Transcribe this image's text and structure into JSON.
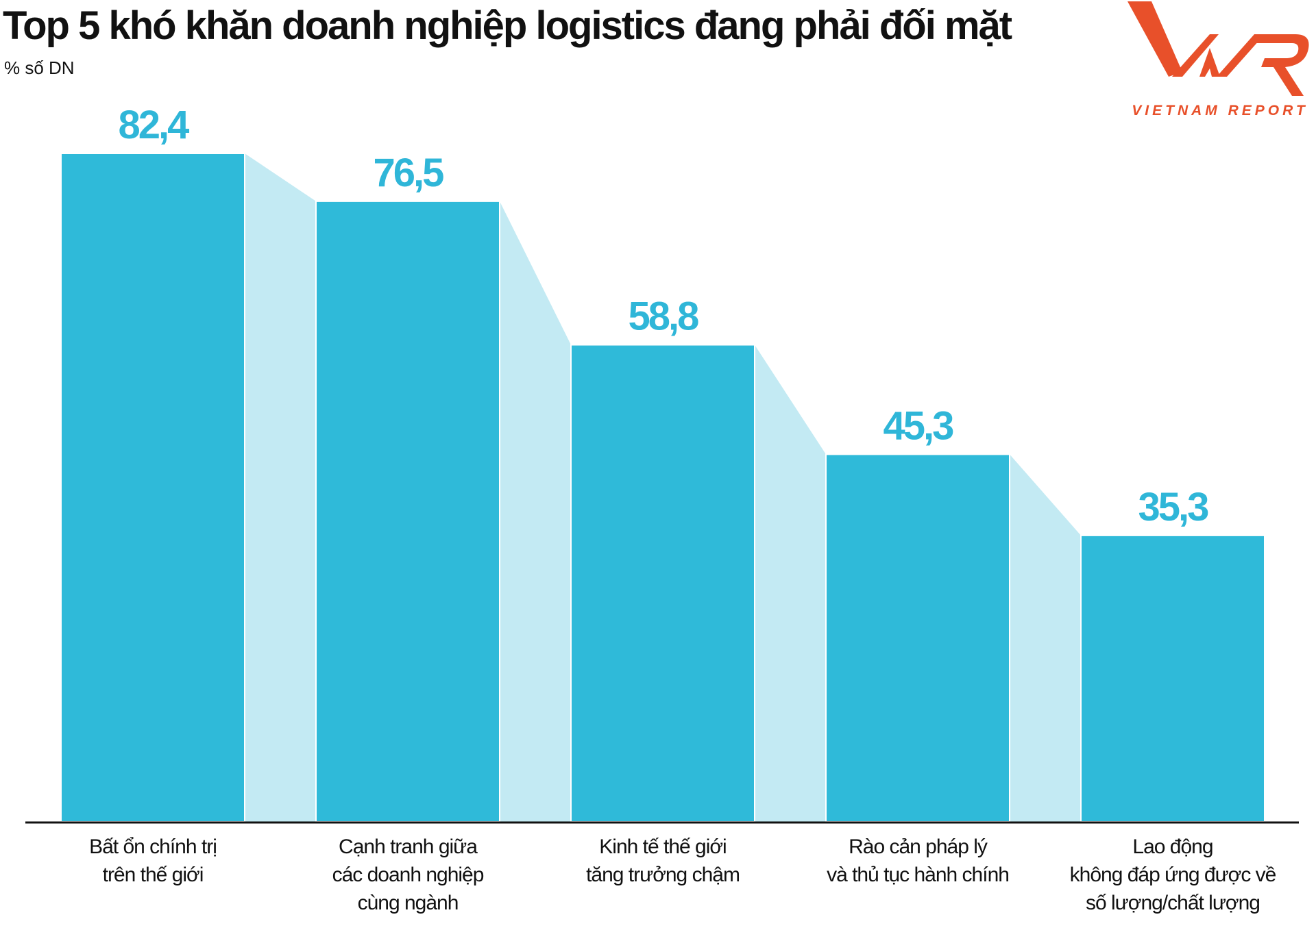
{
  "title": "Top 5 khó khăn doanh nghiệp logistics đang phải đối mặt",
  "logo": {
    "mark": "VNR",
    "text": "VIETNAM REPORT",
    "color": "#e8502a"
  },
  "chart_data": {
    "type": "bar",
    "title": "Top 5 khó khăn doanh nghiệp logistics đang phải đối mặt",
    "ylabel": "% số DN",
    "xlabel": "",
    "ylim": [
      0,
      82.4
    ],
    "grid": false,
    "categories": [
      [
        "Bất ổn chính trị",
        "trên thế giới"
      ],
      [
        "Cạnh tranh giữa",
        "các doanh nghiệp",
        "cùng ngành"
      ],
      [
        "Kinh tế thế giới",
        "tăng trưởng chậm"
      ],
      [
        "Rào cản pháp lý",
        "và thủ tục hành chính"
      ],
      [
        "Lao động",
        "không đáp ứng được về",
        "số lượng/chất lượng"
      ]
    ],
    "values": [
      82.4,
      76.5,
      58.8,
      45.3,
      35.3
    ],
    "value_labels": [
      "82,4",
      "76,5",
      "58,8",
      "45,3",
      "35,3"
    ],
    "colors": {
      "bar": "#2fbad9",
      "connector": "#c3eaf3",
      "label": "#2fb6d8"
    }
  }
}
